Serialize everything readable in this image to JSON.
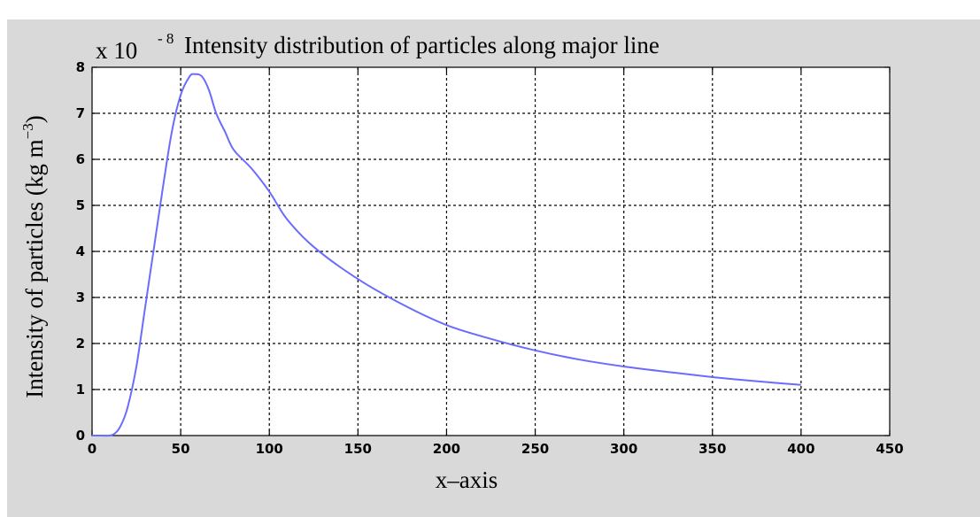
{
  "chart_data": {
    "type": "line",
    "title": "Intensity distribution of particles along major line",
    "exponent_prefix": "x 10",
    "exponent": "- 8",
    "xlabel": "x–axis",
    "ylabel_main": "Intensity of particles (kg m",
    "ylabel_sup": "−3",
    "ylabel_close": ")",
    "xlim": [
      0,
      450
    ],
    "ylim": [
      0,
      8
    ],
    "x_ticks": [
      "0",
      "50",
      "100",
      "150",
      "200",
      "250",
      "300",
      "350",
      "400",
      "450"
    ],
    "y_ticks": [
      "0",
      "1",
      "2",
      "3",
      "4",
      "5",
      "6",
      "7",
      "8"
    ],
    "grid": true,
    "grid_style": "dashed",
    "colors": {
      "background": "#d9d9d9",
      "plot": "#ffffff",
      "line": "#6b6bff",
      "grid": "#000000"
    },
    "series": [
      {
        "x": [
          0,
          5,
          10,
          13,
          16,
          20,
          25,
          30,
          35,
          40,
          45,
          50,
          55,
          58,
          62,
          66,
          70,
          75,
          80,
          90,
          100,
          110,
          125,
          150,
          175,
          200,
          225,
          250,
          275,
          300,
          325,
          350,
          375,
          400
        ],
        "y": [
          0,
          0,
          0,
          0.05,
          0.2,
          0.6,
          1.5,
          2.8,
          4.1,
          5.4,
          6.6,
          7.4,
          7.8,
          7.85,
          7.8,
          7.5,
          7.0,
          6.6,
          6.2,
          5.8,
          5.3,
          4.7,
          4.1,
          3.4,
          2.85,
          2.4,
          2.1,
          1.85,
          1.65,
          1.5,
          1.38,
          1.27,
          1.18,
          1.1
        ]
      }
    ]
  }
}
